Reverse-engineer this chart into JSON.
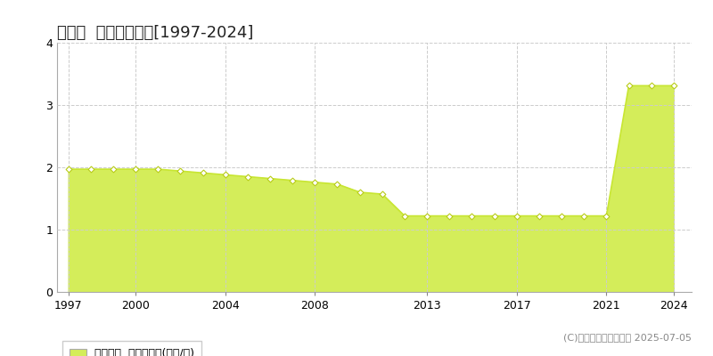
{
  "title": "川内村  基準地価推移[1997-2024]",
  "years": [
    1997,
    1998,
    1999,
    2000,
    2001,
    2002,
    2003,
    2004,
    2005,
    2006,
    2007,
    2008,
    2009,
    2010,
    2011,
    2012,
    2013,
    2014,
    2015,
    2016,
    2017,
    2018,
    2019,
    2020,
    2021,
    2022,
    2023,
    2024
  ],
  "values": [
    1.97,
    1.97,
    1.97,
    1.97,
    1.97,
    1.94,
    1.91,
    1.88,
    1.85,
    1.82,
    1.79,
    1.76,
    1.73,
    1.6,
    1.57,
    1.22,
    1.22,
    1.22,
    1.22,
    1.22,
    1.22,
    1.22,
    1.22,
    1.22,
    1.22,
    3.31,
    3.31,
    3.31
  ],
  "line_color": "#c8e632",
  "fill_color": "#d4ed5a",
  "marker_facecolor": "#ffffff",
  "marker_edgecolor": "#b8cc18",
  "bg_color": "#ffffff",
  "grid_color": "#cccccc",
  "xlim": [
    1996.5,
    2024.8
  ],
  "ylim": [
    0,
    4
  ],
  "yticks": [
    0,
    1,
    2,
    3,
    4
  ],
  "xtick_years": [
    1997,
    2000,
    2004,
    2008,
    2013,
    2017,
    2021,
    2024
  ],
  "legend_label": "基準地価  平均坪単価(万円/坪)",
  "copyright": "(C)土地価格ドットコム 2025-07-05",
  "title_fontsize": 13,
  "tick_fontsize": 9,
  "legend_fontsize": 9,
  "copyright_fontsize": 8
}
